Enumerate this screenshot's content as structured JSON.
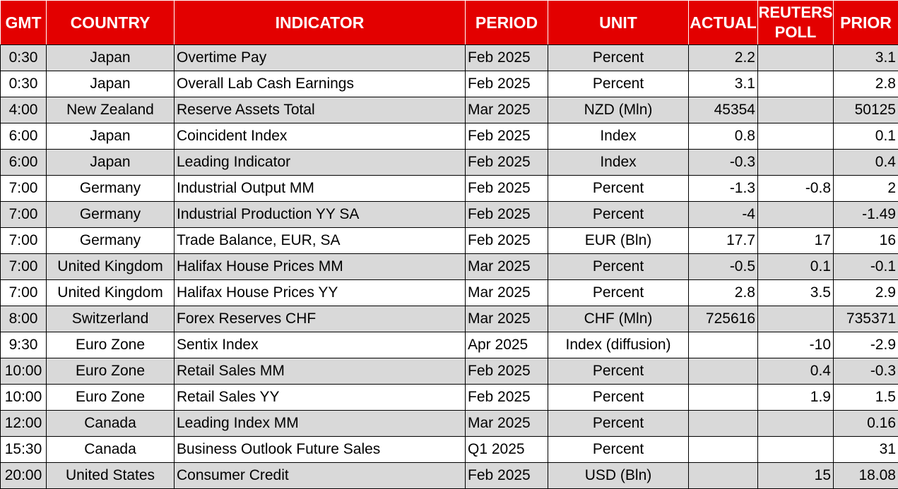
{
  "headers": {
    "gmt": "GMT",
    "country": "COUNTRY",
    "indicator": "INDICATOR",
    "period": "PERIOD",
    "unit": "UNIT",
    "actual": "ACTUAL",
    "poll_line1": "REUTERS",
    "poll_line2": "POLL",
    "prior": "PRIOR"
  },
  "colors": {
    "header_bg": "#e30000",
    "header_text": "#ffffff",
    "shaded_row": "#d9d9d9",
    "plain_row": "#ffffff"
  },
  "rows": [
    {
      "gmt": "0:30",
      "country": "Japan",
      "indicator": "Overtime Pay",
      "period": "Feb 2025",
      "unit": "Percent",
      "actual": "2.2",
      "poll": "",
      "prior": "3.1",
      "shaded": true
    },
    {
      "gmt": "0:30",
      "country": "Japan",
      "indicator": "Overall Lab Cash Earnings",
      "period": "Feb 2025",
      "unit": "Percent",
      "actual": "3.1",
      "poll": "",
      "prior": "2.8",
      "shaded": false
    },
    {
      "gmt": "4:00",
      "country": "New Zealand",
      "indicator": "Reserve Assets Total",
      "period": "Mar 2025",
      "unit": "NZD (Mln)",
      "actual": "45354",
      "poll": "",
      "prior": "50125",
      "shaded": true
    },
    {
      "gmt": "6:00",
      "country": "Japan",
      "indicator": "Coincident Index",
      "period": "Feb 2025",
      "unit": "Index",
      "actual": "0.8",
      "poll": "",
      "prior": "0.1",
      "shaded": false
    },
    {
      "gmt": "6:00",
      "country": "Japan",
      "indicator": "Leading Indicator",
      "period": "Feb 2025",
      "unit": "Index",
      "actual": "-0.3",
      "poll": "",
      "prior": "0.4",
      "shaded": true
    },
    {
      "gmt": "7:00",
      "country": "Germany",
      "indicator": "Industrial Output MM",
      "period": "Feb 2025",
      "unit": "Percent",
      "actual": "-1.3",
      "poll": "-0.8",
      "prior": "2",
      "shaded": false
    },
    {
      "gmt": "7:00",
      "country": "Germany",
      "indicator": "Industrial Production YY SA",
      "period": "Feb 2025",
      "unit": "Percent",
      "actual": "-4",
      "poll": "",
      "prior": "-1.49",
      "shaded": true
    },
    {
      "gmt": "7:00",
      "country": "Germany",
      "indicator": "Trade Balance, EUR, SA",
      "period": "Feb 2025",
      "unit": "EUR (Bln)",
      "actual": "17.7",
      "poll": "17",
      "prior": "16",
      "shaded": false
    },
    {
      "gmt": "7:00",
      "country": "United Kingdom",
      "indicator": "Halifax House Prices MM",
      "period": "Mar 2025",
      "unit": "Percent",
      "actual": "-0.5",
      "poll": "0.1",
      "prior": "-0.1",
      "shaded": true
    },
    {
      "gmt": "7:00",
      "country": "United Kingdom",
      "indicator": "Halifax House Prices YY",
      "period": "Mar 2025",
      "unit": "Percent",
      "actual": "2.8",
      "poll": "3.5",
      "prior": "2.9",
      "shaded": false
    },
    {
      "gmt": "8:00",
      "country": "Switzerland",
      "indicator": "Forex Reserves CHF",
      "period": "Mar 2025",
      "unit": "CHF (Mln)",
      "actual": "725616",
      "poll": "",
      "prior": "735371",
      "shaded": true
    },
    {
      "gmt": "9:30",
      "country": "Euro Zone",
      "indicator": "Sentix Index",
      "period": "Apr 2025",
      "unit": "Index (diffusion)",
      "actual": "",
      "poll": "-10",
      "prior": "-2.9",
      "shaded": false
    },
    {
      "gmt": "10:00",
      "country": "Euro Zone",
      "indicator": "Retail Sales MM",
      "period": "Feb 2025",
      "unit": "Percent",
      "actual": "",
      "poll": "0.4",
      "prior": "-0.3",
      "shaded": true
    },
    {
      "gmt": "10:00",
      "country": "Euro Zone",
      "indicator": "Retail Sales YY",
      "period": "Feb 2025",
      "unit": "Percent",
      "actual": "",
      "poll": "1.9",
      "prior": "1.5",
      "shaded": false
    },
    {
      "gmt": "12:00",
      "country": "Canada",
      "indicator": "Leading Index MM",
      "period": "Mar 2025",
      "unit": "Percent",
      "actual": "",
      "poll": "",
      "prior": "0.16",
      "shaded": true
    },
    {
      "gmt": "15:30",
      "country": "Canada",
      "indicator": "Business Outlook Future Sales",
      "period": "Q1 2025",
      "unit": "Percent",
      "actual": "",
      "poll": "",
      "prior": "31",
      "shaded": false
    },
    {
      "gmt": "20:00",
      "country": "United States",
      "indicator": "Consumer Credit",
      "period": "Feb 2025",
      "unit": "USD (Bln)",
      "actual": "",
      "poll": "15",
      "prior": "18.08",
      "shaded": true
    }
  ]
}
